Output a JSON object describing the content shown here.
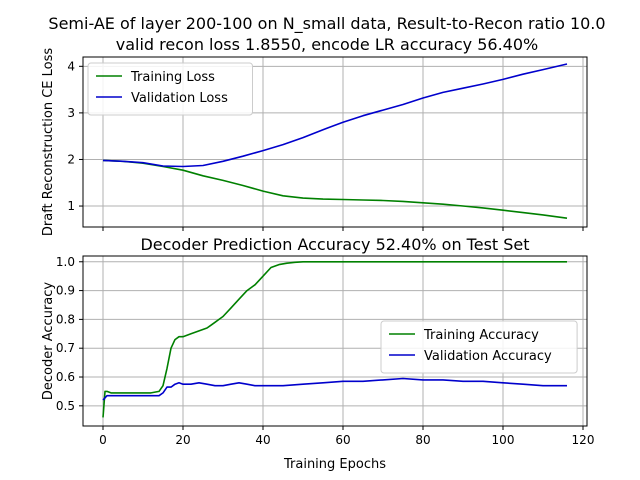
{
  "figure": {
    "title_line1": "Semi-AE of layer 200-100 on N_small data, Result-to-Recon ratio 10.0",
    "title_line2": "valid recon loss 1.8550, encode LR accuracy 56.40%"
  },
  "colors": {
    "training": "#008000",
    "validation": "#0000cc"
  },
  "chart_data": [
    {
      "type": "line",
      "title": "",
      "xlabel": "",
      "ylabel": "Draft Reconstruction CE Loss",
      "xlim": [
        -5,
        121
      ],
      "ylim": [
        0.55,
        4.2
      ],
      "xticks": [
        0,
        20,
        40,
        60,
        80,
        100,
        120
      ],
      "show_xticklabels": false,
      "yticks": [
        1,
        2,
        3,
        4
      ],
      "grid": true,
      "legend": "top-left",
      "series": [
        {
          "name": "Training Loss",
          "color": "#008000",
          "x": [
            0,
            5,
            10,
            15,
            20,
            25,
            30,
            35,
            40,
            45,
            50,
            55,
            60,
            65,
            70,
            75,
            80,
            85,
            90,
            95,
            100,
            105,
            110,
            116
          ],
          "y": [
            1.98,
            1.96,
            1.92,
            1.85,
            1.77,
            1.65,
            1.55,
            1.44,
            1.32,
            1.22,
            1.17,
            1.15,
            1.14,
            1.13,
            1.12,
            1.1,
            1.07,
            1.04,
            1.0,
            0.96,
            0.91,
            0.86,
            0.81,
            0.74
          ]
        },
        {
          "name": "Validation Loss",
          "color": "#0000cc",
          "x": [
            0,
            5,
            10,
            15,
            20,
            25,
            30,
            35,
            40,
            45,
            50,
            55,
            60,
            65,
            70,
            75,
            80,
            85,
            90,
            95,
            100,
            105,
            110,
            116
          ],
          "y": [
            1.98,
            1.96,
            1.93,
            1.86,
            1.85,
            1.87,
            1.96,
            2.07,
            2.19,
            2.32,
            2.47,
            2.64,
            2.8,
            2.94,
            3.06,
            3.18,
            3.32,
            3.44,
            3.53,
            3.62,
            3.72,
            3.83,
            3.93,
            4.05
          ]
        }
      ]
    },
    {
      "type": "line",
      "title": "Decoder Prediction Accuracy 52.40% on Test Set",
      "xlabel": "Training Epochs",
      "ylabel": "Decoder Accuracy",
      "xlim": [
        -5,
        121
      ],
      "ylim": [
        0.43,
        1.02
      ],
      "xticks": [
        0,
        20,
        40,
        60,
        80,
        100,
        120
      ],
      "show_xticklabels": true,
      "yticks": [
        0.5,
        0.6,
        0.7,
        0.8,
        0.9,
        1.0
      ],
      "grid": true,
      "legend": "center-right",
      "series": [
        {
          "name": "Training Accuracy",
          "color": "#008000",
          "x": [
            0,
            0.5,
            1,
            2,
            4,
            8,
            12,
            14,
            15,
            16,
            17,
            18,
            19,
            20,
            22,
            24,
            26,
            27,
            28,
            29,
            30,
            32,
            34,
            36,
            38,
            40,
            42,
            44,
            46,
            48,
            50,
            60,
            70,
            80,
            90,
            100,
            110,
            116
          ],
          "y": [
            0.46,
            0.55,
            0.55,
            0.545,
            0.545,
            0.545,
            0.545,
            0.55,
            0.57,
            0.63,
            0.7,
            0.73,
            0.74,
            0.74,
            0.75,
            0.76,
            0.77,
            0.78,
            0.79,
            0.8,
            0.81,
            0.84,
            0.87,
            0.9,
            0.92,
            0.95,
            0.98,
            0.99,
            0.995,
            0.998,
            1.0,
            1.0,
            1.0,
            1.0,
            1.0,
            1.0,
            1.0,
            1.0
          ]
        },
        {
          "name": "Validation Accuracy",
          "color": "#0000cc",
          "x": [
            0,
            1,
            5,
            10,
            14,
            15,
            16,
            17,
            18,
            19,
            20,
            22,
            24,
            26,
            28,
            30,
            32,
            34,
            36,
            38,
            40,
            45,
            50,
            55,
            60,
            65,
            70,
            75,
            80,
            85,
            90,
            95,
            100,
            105,
            110,
            116
          ],
          "y": [
            0.52,
            0.535,
            0.535,
            0.535,
            0.535,
            0.545,
            0.565,
            0.565,
            0.575,
            0.58,
            0.575,
            0.575,
            0.58,
            0.575,
            0.57,
            0.57,
            0.575,
            0.58,
            0.575,
            0.57,
            0.57,
            0.57,
            0.575,
            0.58,
            0.585,
            0.585,
            0.59,
            0.595,
            0.59,
            0.59,
            0.585,
            0.585,
            0.58,
            0.575,
            0.57,
            0.57
          ]
        }
      ]
    }
  ]
}
